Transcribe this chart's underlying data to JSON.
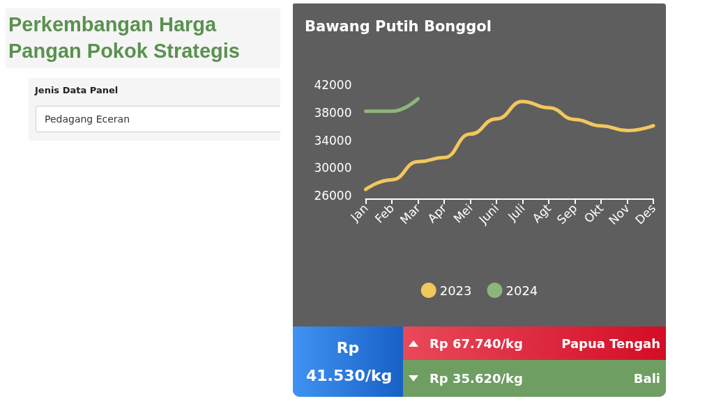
{
  "chart_data": [
    {
      "type": "other",
      "title": "Perkembangan Harga Pangan Pokok Strategis",
      "annotations": [
        "Jenis Data Panel",
        "Pedagang Eceran"
      ]
    },
    {
      "type": "line",
      "title": "Bawang Putih Bonggol",
      "categories": [
        "Jan",
        "Feb",
        "Mar",
        "Apr",
        "Mei",
        "Juni",
        "Juli",
        "Agt",
        "Sep",
        "Okt",
        "Nov",
        "Des"
      ],
      "series": [
        {
          "name": "2023",
          "color": "#f2c75c",
          "values": [
            26900,
            28300,
            30900,
            31500,
            34900,
            37100,
            39600,
            38700,
            37000,
            36100,
            35400,
            36100
          ]
        },
        {
          "name": "2024",
          "color": "#8db67a",
          "values": [
            38200,
            38200,
            40000,
            null,
            null,
            null,
            null,
            null,
            null,
            null,
            null,
            null
          ]
        }
      ],
      "ylim": [
        25500,
        42000
      ],
      "yticks": [
        26000,
        30000,
        34000,
        38000,
        42000
      ],
      "grid": false,
      "legend": "bottom",
      "marker": "none",
      "line_style": "solid",
      "annotations": [
        "Rp 41.530/kg",
        "Rp 67.740/kg",
        "Papua Tengah",
        "Rp 35.620/kg",
        "Bali"
      ]
    }
  ]
}
